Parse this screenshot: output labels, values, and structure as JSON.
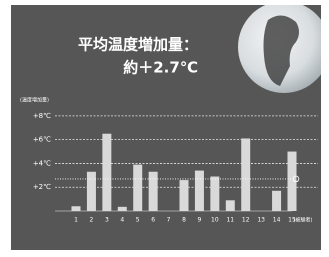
{
  "chart_data": {
    "type": "bar",
    "title": "平均温度増加量：",
    "subtitle": "約＋2.7℃",
    "y_label": "(温度増加量)",
    "x_label": "(被験者)",
    "categories": [
      "1",
      "2",
      "3",
      "4",
      "5",
      "6",
      "7",
      "8",
      "9",
      "10",
      "11",
      "12",
      "13",
      "14",
      "15"
    ],
    "values": [
      0.4,
      3.3,
      6.5,
      0.35,
      3.9,
      3.3,
      0,
      2.6,
      3.4,
      2.9,
      0.9,
      6.1,
      0,
      1.7,
      5.0
    ],
    "color": "#d9d9d9",
    "average": 2.7,
    "ylim": [
      0,
      8.2
    ],
    "yticks": [
      {
        "value": 2,
        "label": "+2℃"
      },
      {
        "value": 4,
        "label": "+4℃"
      },
      {
        "value": 6,
        "label": "+6℃"
      },
      {
        "value": 8,
        "label": "+8℃"
      }
    ],
    "grid": true
  }
}
